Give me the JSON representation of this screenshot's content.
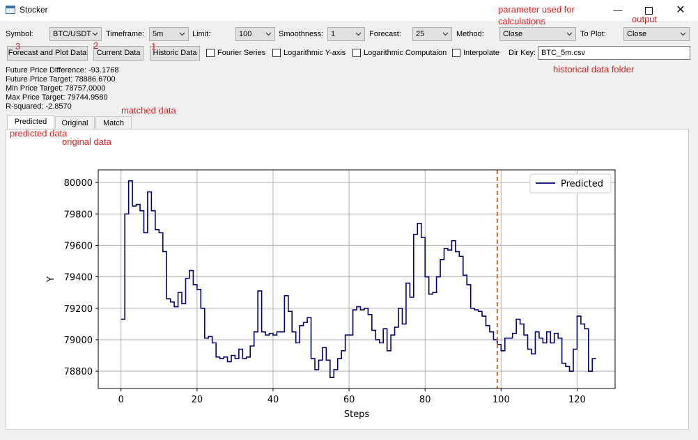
{
  "window": {
    "title": "Stocker"
  },
  "controls": {
    "symbol_label": "Symbol:",
    "symbol_value": "BTC/USDT",
    "timeframe_label": "Timeframe:",
    "timeframe_value": "5m",
    "limit_label": "Limit:",
    "limit_value": "100",
    "smoothness_label": "Smoothness:",
    "smoothness_value": "1",
    "forecast_label": "Forecast:",
    "forecast_value": "25",
    "method_label": "Method:",
    "method_value": "Close",
    "toplot_label": "To Plot:",
    "toplot_value": "Close",
    "btn_forecast": "Forecast and Plot Data",
    "btn_current": "Current Data",
    "btn_historic": "Historic Data",
    "chk_fourier": "Fourier Series",
    "chk_logy": "Logarithmic Y-axis",
    "chk_logcomp": "Logarithmic Computaion",
    "chk_interp": "Interpolate",
    "dirkey_label": "Dir Key:",
    "dirkey_value": "BTC_5m.csv"
  },
  "info": {
    "diff": "Future Price Difference: -93.1768",
    "target": "Future Price Target: 78886.6700",
    "min": "Min Price Target: 78757.0000",
    "max": "Max Price Target: 79744.9580",
    "r2": "R-squared: -2.8570"
  },
  "tabs": [
    "Predicted",
    "Original",
    "Match"
  ],
  "annotations": {
    "n3": "3",
    "n2": "2",
    "n1": "1",
    "param": "parameter used for\ncalculations",
    "output": "output",
    "histfolder": "historical data folder",
    "matched": "matched data",
    "predicted": "predicted data",
    "original": "original data"
  },
  "colors": {
    "line": "#000070",
    "vline": "#d2691e",
    "annotation": "#e02020"
  },
  "chart_data": {
    "type": "line",
    "step": "post",
    "xlabel": "Steps",
    "ylabel": "Y",
    "xlim": [
      -6,
      130
    ],
    "ylim": [
      78690,
      80080
    ],
    "xticks": [
      0,
      20,
      40,
      60,
      80,
      100,
      120
    ],
    "yticks": [
      78800,
      79000,
      79200,
      79400,
      79600,
      79800,
      80000
    ],
    "grid": true,
    "legend_position": "top-right",
    "vline_x": 99,
    "series": [
      {
        "name": "Predicted",
        "x": [
          0,
          1,
          2,
          3,
          4,
          5,
          6,
          7,
          8,
          9,
          10,
          11,
          12,
          13,
          14,
          15,
          16,
          17,
          18,
          19,
          20,
          21,
          22,
          23,
          24,
          25,
          26,
          27,
          28,
          29,
          30,
          31,
          32,
          33,
          34,
          35,
          36,
          37,
          38,
          39,
          40,
          41,
          42,
          43,
          44,
          45,
          46,
          47,
          48,
          49,
          50,
          51,
          52,
          53,
          54,
          55,
          56,
          57,
          58,
          59,
          60,
          61,
          62,
          63,
          64,
          65,
          66,
          67,
          68,
          69,
          70,
          71,
          72,
          73,
          74,
          75,
          76,
          77,
          78,
          79,
          80,
          81,
          82,
          83,
          84,
          85,
          86,
          87,
          88,
          89,
          90,
          91,
          92,
          93,
          94,
          95,
          96,
          97,
          98,
          99,
          100,
          101,
          102,
          103,
          104,
          105,
          106,
          107,
          108,
          109,
          110,
          111,
          112,
          113,
          114,
          115,
          116,
          117,
          118,
          119,
          120,
          121,
          122,
          123,
          124
        ],
        "values": [
          79130,
          79800,
          80010,
          79850,
          79860,
          79820,
          79680,
          79940,
          79820,
          79700,
          79680,
          79560,
          79260,
          79240,
          79210,
          79300,
          79230,
          79390,
          79440,
          79350,
          79320,
          79200,
          79010,
          79020,
          78980,
          78890,
          78880,
          78890,
          78860,
          78900,
          78880,
          78940,
          78880,
          78890,
          78960,
          79050,
          79310,
          79050,
          79030,
          79040,
          79030,
          79050,
          79050,
          79280,
          79180,
          79050,
          78980,
          79090,
          79110,
          79140,
          78880,
          78810,
          78870,
          78950,
          78870,
          78760,
          78810,
          78880,
          78930,
          79030,
          79030,
          79190,
          79210,
          79190,
          79200,
          79160,
          79060,
          79000,
          78980,
          79070,
          78930,
          79030,
          79080,
          79200,
          79100,
          79360,
          79270,
          79670,
          79740,
          79650,
          79400,
          79290,
          79300,
          79400,
          79510,
          79580,
          79570,
          79630,
          79560,
          79530,
          79410,
          79350,
          79200,
          79190,
          79180,
          79150,
          79090,
          79050,
          79000,
          78970,
          78930,
          79010,
          79010,
          79040,
          79130,
          79100,
          79030,
          78940,
          78910,
          79050,
          79010,
          78980,
          79050,
          78980,
          79040,
          79010,
          78850,
          78830,
          78800,
          78940,
          79150,
          79100,
          79070,
          78800,
          78880
        ]
      }
    ]
  }
}
